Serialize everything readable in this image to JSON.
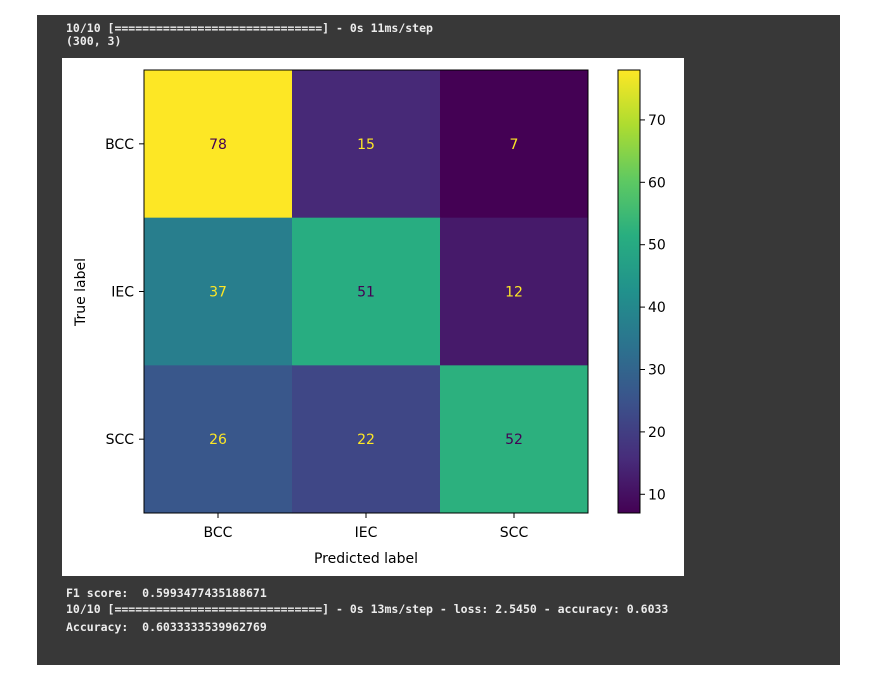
{
  "console": {
    "line1": "10/10 [==============================] - 0s 11ms/step",
    "line2": "(300, 3)",
    "line3": "F1 score:  0.5993477435188671",
    "line4": "10/10 [==============================] - 0s 13ms/step - loss: 2.5450 - accuracy: 0.6033",
    "line5": "Accuracy:  0.6033333539962769"
  },
  "chart_data": {
    "type": "heatmap",
    "title": "",
    "xlabel": "Predicted label",
    "ylabel": "True label",
    "x_categories": [
      "BCC",
      "IEC",
      "SCC"
    ],
    "y_categories": [
      "BCC",
      "IEC",
      "SCC"
    ],
    "values": [
      [
        78,
        15,
        7
      ],
      [
        37,
        51,
        12
      ],
      [
        26,
        22,
        52
      ]
    ],
    "colormap": "viridis",
    "colorbar": {
      "min": 7,
      "max": 78,
      "ticks": [
        10,
        20,
        30,
        40,
        50,
        60,
        70
      ]
    },
    "grid": false
  }
}
